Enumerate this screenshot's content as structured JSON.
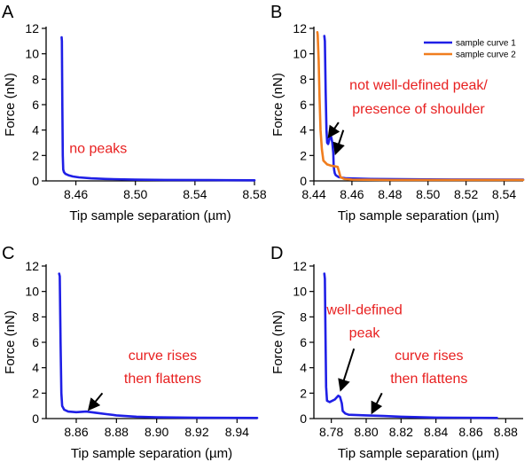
{
  "figure_colors": {
    "curve1": "#1f1fe6",
    "curve2": "#f07d1e",
    "annotation": "#e82020",
    "axis": "#000000"
  },
  "chart_data": [
    {
      "panel": "A",
      "type": "line",
      "xlabel": "Tip sample separation (µm)",
      "ylabel": "Force (nN)",
      "xlim": [
        8.44,
        8.58
      ],
      "ylim": [
        0,
        12
      ],
      "xticks": [
        8.46,
        8.5,
        8.54,
        8.58
      ],
      "xtick_labels": [
        "8.46",
        "8.50",
        "8.54",
        "8.58"
      ],
      "yticks": [
        0,
        2,
        4,
        6,
        8,
        10,
        12
      ],
      "ytick_labels": [
        "0",
        "2",
        "4",
        "6",
        "8",
        "10",
        "12"
      ],
      "series": [
        {
          "name": "curve",
          "color": "#1f1fe6",
          "x": [
            8.4504,
            8.4506,
            8.4509,
            8.4512,
            8.4515,
            8.452,
            8.453,
            8.455,
            8.458,
            8.462,
            8.47,
            8.48,
            8.5,
            8.52,
            8.55,
            8.58
          ],
          "y": [
            11.3,
            11.0,
            6.0,
            2.0,
            0.9,
            0.7,
            0.55,
            0.45,
            0.35,
            0.28,
            0.2,
            0.15,
            0.1,
            0.08,
            0.06,
            0.05
          ]
        }
      ],
      "annotations": [
        {
          "text": "no peaks",
          "x": 8.475,
          "y": 2.2
        }
      ],
      "arrows": []
    },
    {
      "panel": "B",
      "type": "line",
      "xlabel": "Tip sample separation (µm)",
      "ylabel": "Force (nN)",
      "xlim": [
        8.44,
        8.55
      ],
      "ylim": [
        0,
        12
      ],
      "xticks": [
        8.44,
        8.46,
        8.48,
        8.5,
        8.52,
        8.54
      ],
      "xtick_labels": [
        "8.44",
        "8.46",
        "8.48",
        "8.50",
        "8.52",
        "8.54"
      ],
      "yticks": [
        0,
        2,
        4,
        6,
        8,
        10,
        12
      ],
      "ytick_labels": [
        "0",
        "2",
        "4",
        "6",
        "8",
        "10",
        "12"
      ],
      "legend": {
        "position": "top-right",
        "entries": [
          "sample curve 1",
          "sample curve 2"
        ]
      },
      "series": [
        {
          "name": "sample curve 1",
          "color": "#1f1fe6",
          "x": [
            8.4455,
            8.4458,
            8.4462,
            8.4466,
            8.447,
            8.4475,
            8.448,
            8.4486,
            8.4492,
            8.4497,
            8.4502,
            8.4504,
            8.4507,
            8.451,
            8.4515,
            8.453,
            8.457,
            8.47,
            8.5,
            8.55
          ],
          "y": [
            11.4,
            11.0,
            7.0,
            4.0,
            3.0,
            2.9,
            3.2,
            3.6,
            3.4,
            3.0,
            2.2,
            1.2,
            0.8,
            0.6,
            0.45,
            0.3,
            0.2,
            0.15,
            0.12,
            0.1
          ]
        },
        {
          "name": "sample curve 2",
          "color": "#f07d1e",
          "x": [
            8.4418,
            8.442,
            8.4425,
            8.443,
            8.4435,
            8.4442,
            8.445,
            8.447,
            8.449,
            8.451,
            8.4525,
            8.4533,
            8.454,
            8.456,
            8.46,
            8.48,
            8.55
          ],
          "y": [
            11.7,
            11.5,
            9.5,
            6.5,
            4.0,
            2.5,
            1.6,
            1.3,
            1.2,
            1.15,
            1.1,
            0.7,
            0.3,
            0.15,
            0.1,
            0.08,
            0.08
          ]
        }
      ],
      "annotations": [
        {
          "text": "not well-defined peak/",
          "x": 8.495,
          "y": 7.2
        },
        {
          "text": "presence of shoulder",
          "x": 8.495,
          "y": 5.3
        }
      ],
      "arrows": [
        {
          "from": [
            8.453,
            4.6
          ],
          "to": [
            8.448,
            3.5
          ]
        },
        {
          "from": [
            8.4555,
            4.0
          ],
          "to": [
            8.4515,
            2.2
          ]
        }
      ]
    },
    {
      "panel": "C",
      "type": "line",
      "xlabel": "Tip sample separation (µm)",
      "ylabel": "Force (nN)",
      "xlim": [
        8.845,
        8.95
      ],
      "ylim": [
        0,
        12
      ],
      "xticks": [
        8.86,
        8.88,
        8.9,
        8.92,
        8.94
      ],
      "xtick_labels": [
        "8.86",
        "8.88",
        "8.90",
        "8.92",
        "8.94"
      ],
      "yticks": [
        0,
        2,
        4,
        6,
        8,
        10,
        12
      ],
      "ytick_labels": [
        "0",
        "2",
        "4",
        "6",
        "8",
        "10",
        "12"
      ],
      "series": [
        {
          "name": "curve",
          "color": "#1f1fe6",
          "x": [
            8.8515,
            8.8518,
            8.8522,
            8.8526,
            8.853,
            8.854,
            8.856,
            8.86,
            8.865,
            8.87,
            8.875,
            8.88,
            8.89,
            8.9,
            8.92,
            8.95
          ],
          "y": [
            11.4,
            11.2,
            6.0,
            2.0,
            1.0,
            0.7,
            0.55,
            0.5,
            0.55,
            0.45,
            0.35,
            0.25,
            0.15,
            0.1,
            0.06,
            0.05
          ]
        }
      ],
      "annotations": [
        {
          "text": "curve rises",
          "x": 8.903,
          "y": 4.6
        },
        {
          "text": "then flattens",
          "x": 8.903,
          "y": 2.8
        }
      ],
      "arrows": [
        {
          "from": [
            8.873,
            2.0
          ],
          "to": [
            8.8665,
            0.75
          ]
        }
      ]
    },
    {
      "panel": "D",
      "type": "line",
      "xlabel": "Tip sample separation (µm)",
      "ylabel": "Force (nN)",
      "xlim": [
        8.77,
        8.89
      ],
      "ylim": [
        0,
        12
      ],
      "xticks": [
        8.78,
        8.8,
        8.82,
        8.84,
        8.86,
        8.88
      ],
      "xtick_labels": [
        "8.78",
        "8.80",
        "8.82",
        "8.84",
        "8.86",
        "8.88"
      ],
      "yticks": [
        0,
        2,
        4,
        6,
        8,
        10,
        12
      ],
      "ytick_labels": [
        "0",
        "2",
        "4",
        "6",
        "8",
        "10",
        "12"
      ],
      "series": [
        {
          "name": "curve",
          "color": "#1f1fe6",
          "x": [
            8.776,
            8.7763,
            8.7767,
            8.777,
            8.7775,
            8.779,
            8.782,
            8.784,
            8.785,
            8.786,
            8.7865,
            8.788,
            8.79,
            8.8,
            8.81,
            8.82,
            8.84,
            8.875
          ],
          "y": [
            11.4,
            11.0,
            6.0,
            2.5,
            1.4,
            1.3,
            1.5,
            1.8,
            1.7,
            1.2,
            0.6,
            0.4,
            0.3,
            0.25,
            0.2,
            0.15,
            0.08,
            0.05
          ]
        }
      ],
      "annotations": [
        {
          "text": "well-defined",
          "x": 8.799,
          "y": 8.2
        },
        {
          "text": "peak",
          "x": 8.799,
          "y": 6.4
        },
        {
          "text": "curve rises",
          "x": 8.836,
          "y": 4.6
        },
        {
          "text": "then flattens",
          "x": 8.836,
          "y": 2.8
        }
      ],
      "arrows": [
        {
          "from": [
            8.793,
            5.5
          ],
          "to": [
            8.7855,
            2.3
          ]
        },
        {
          "from": [
            8.809,
            2.0
          ],
          "to": [
            8.8035,
            0.5
          ]
        }
      ]
    }
  ],
  "panel_labels": [
    "A",
    "B",
    "C",
    "D"
  ]
}
